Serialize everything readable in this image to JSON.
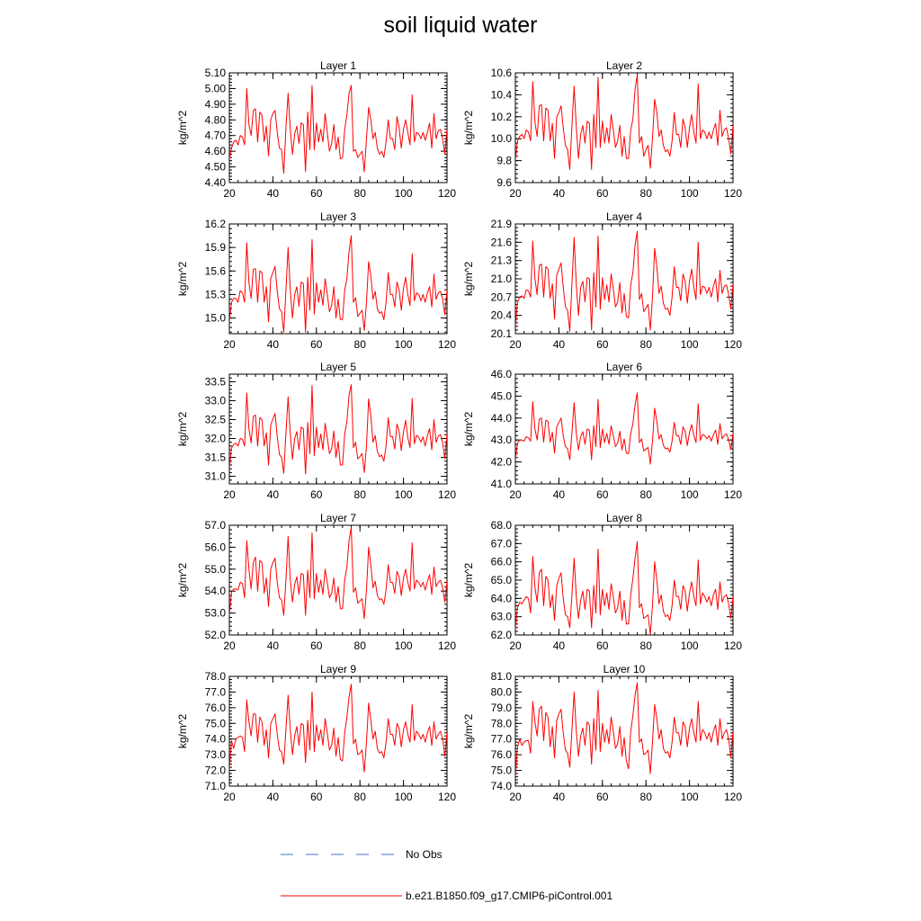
{
  "title": "soil liquid water",
  "colors": {
    "model": "#ff0000",
    "obs": "#4a6fd0",
    "axis": "#000000"
  },
  "legend": [
    {
      "label": "No Obs",
      "style": "dashed",
      "color": "#4a6fd0"
    },
    {
      "label": "b.e21.B1850.f09_g17.CMIP6-piControl.001",
      "style": "solid",
      "color": "#ff0000"
    }
  ],
  "chart_data": [
    {
      "type": "line",
      "title": "Layer 1",
      "ylabel": "kg/m^2",
      "xlim": [
        20,
        120
      ],
      "xticks": [
        20,
        40,
        60,
        80,
        100,
        120
      ],
      "ylim": [
        4.4,
        5.1
      ],
      "yticks": [
        "4.40",
        "4.50",
        "4.60",
        "4.70",
        "4.80",
        "4.90",
        "5.00",
        "5.10"
      ],
      "x_start": 20,
      "values": [
        4.55,
        4.62,
        4.66,
        4.67,
        4.64,
        4.7,
        4.69,
        4.64,
        5.0,
        4.77,
        4.7,
        4.86,
        4.87,
        4.66,
        4.85,
        4.83,
        4.66,
        4.76,
        4.57,
        4.8,
        4.84,
        4.86,
        4.72,
        4.62,
        4.61,
        4.46,
        4.75,
        4.97,
        4.74,
        4.58,
        4.71,
        4.76,
        4.65,
        4.78,
        4.77,
        4.47,
        4.85,
        4.61,
        5.02,
        4.61,
        4.78,
        4.66,
        4.74,
        4.66,
        4.84,
        4.72,
        4.6,
        4.65,
        4.77,
        4.61,
        4.69,
        4.55,
        4.56,
        4.74,
        4.83,
        4.97,
        5.02,
        4.6,
        4.61,
        4.56,
        4.58,
        4.6,
        4.47,
        4.68,
        4.88,
        4.8,
        4.68,
        4.72,
        4.62,
        4.58,
        4.6,
        4.56,
        4.66,
        4.8,
        4.68,
        4.68,
        4.61,
        4.82,
        4.75,
        4.62,
        4.74,
        4.8,
        4.72,
        4.64,
        4.96,
        4.66,
        4.72,
        4.71,
        4.68,
        4.72,
        4.67,
        4.72,
        4.78,
        4.62,
        4.84,
        4.68,
        4.73,
        4.74,
        4.68,
        4.58,
        4.74,
        4.7,
        4.6,
        4.73
      ]
    },
    {
      "type": "line",
      "title": "Layer 2",
      "ylabel": "kg/m^2",
      "xlim": [
        20,
        120
      ],
      "xticks": [
        20,
        40,
        60,
        80,
        100,
        120
      ],
      "ylim": [
        9.6,
        10.6
      ],
      "yticks": [
        "9.6",
        "9.8",
        "10.0",
        "10.2",
        "10.4",
        "10.6"
      ],
      "x_start": 20,
      "values": [
        9.8,
        9.98,
        10.02,
        10.04,
        10.0,
        10.08,
        10.06,
        9.98,
        10.52,
        10.15,
        10.02,
        10.3,
        10.31,
        9.98,
        10.28,
        10.26,
        9.98,
        10.14,
        9.82,
        10.2,
        10.24,
        10.3,
        10.1,
        9.94,
        9.9,
        9.72,
        10.12,
        10.48,
        10.1,
        9.82,
        10.04,
        10.12,
        9.96,
        10.16,
        10.14,
        9.72,
        10.22,
        9.92,
        10.56,
        9.92,
        10.16,
        9.96,
        10.1,
        9.96,
        10.22,
        10.08,
        9.92,
        9.98,
        10.12,
        9.84,
        10.02,
        9.82,
        9.82,
        10.08,
        10.18,
        10.45,
        10.58,
        9.96,
        10.02,
        9.84,
        9.9,
        9.94,
        9.73,
        10.0,
        10.36,
        10.24,
        10.02,
        10.08,
        9.94,
        9.88,
        9.9,
        9.84,
        9.98,
        10.24,
        10.04,
        10.04,
        9.92,
        10.18,
        10.1,
        9.92,
        10.1,
        10.22,
        10.06,
        9.96,
        10.5,
        10.0,
        10.08,
        10.06,
        10.0,
        10.06,
        10.0,
        10.08,
        10.14,
        9.94,
        10.26,
        10.02,
        10.08,
        10.1,
        10.0,
        9.86,
        10.12,
        10.04,
        9.92,
        10.12
      ]
    },
    {
      "type": "line",
      "title": "Layer 3",
      "ylabel": "kg/m^2",
      "xlim": [
        20,
        120
      ],
      "xticks": [
        20,
        40,
        60,
        80,
        100,
        120
      ],
      "ylim": [
        14.8,
        16.2
      ],
      "yticks": [
        "15.0",
        "15.3",
        "15.6",
        "15.9",
        "16.2"
      ],
      "x_start": 20,
      "values": [
        14.95,
        15.2,
        15.25,
        15.25,
        15.2,
        15.35,
        15.32,
        15.2,
        15.96,
        15.45,
        15.25,
        15.62,
        15.63,
        15.2,
        15.6,
        15.58,
        15.2,
        15.4,
        14.95,
        15.5,
        15.58,
        15.66,
        15.34,
        15.12,
        15.08,
        14.82,
        15.36,
        15.9,
        15.35,
        15.0,
        15.3,
        15.4,
        15.15,
        15.46,
        15.44,
        14.82,
        15.52,
        15.1,
        16.0,
        15.05,
        15.45,
        15.2,
        15.36,
        15.16,
        15.5,
        15.3,
        15.08,
        15.16,
        15.4,
        15.0,
        15.24,
        14.98,
        14.98,
        15.36,
        15.5,
        15.85,
        16.05,
        15.2,
        15.26,
        15.02,
        15.06,
        15.1,
        14.84,
        15.2,
        15.72,
        15.54,
        15.24,
        15.34,
        15.12,
        15.06,
        15.08,
        14.98,
        15.2,
        15.58,
        15.3,
        15.3,
        15.14,
        15.46,
        15.36,
        15.1,
        15.38,
        15.52,
        15.3,
        15.16,
        15.82,
        15.22,
        15.32,
        15.3,
        15.22,
        15.3,
        15.2,
        15.32,
        15.4,
        15.14,
        15.56,
        15.24,
        15.32,
        15.34,
        15.24,
        15.04,
        15.36,
        15.28,
        15.12,
        15.36
      ]
    },
    {
      "type": "line",
      "title": "Layer 4",
      "ylabel": "kg/m^2",
      "xlim": [
        20,
        120
      ],
      "xticks": [
        20,
        40,
        60,
        80,
        100,
        120
      ],
      "ylim": [
        20.1,
        21.9
      ],
      "yticks": [
        "20.1",
        "20.4",
        "20.7",
        "21.0",
        "21.3",
        "21.6",
        "21.9"
      ],
      "x_start": 20,
      "values": [
        20.2,
        20.62,
        20.7,
        20.72,
        20.68,
        20.82,
        20.8,
        20.7,
        21.62,
        21.0,
        20.74,
        21.22,
        21.24,
        20.7,
        21.2,
        21.16,
        20.68,
        20.92,
        20.34,
        21.06,
        21.16,
        21.26,
        20.86,
        20.54,
        20.48,
        20.14,
        20.92,
        21.68,
        20.9,
        20.4,
        20.86,
        20.96,
        20.62,
        21.02,
        21.0,
        20.16,
        21.1,
        20.54,
        21.7,
        20.5,
        21.02,
        20.66,
        20.9,
        20.62,
        21.08,
        20.84,
        20.54,
        20.62,
        20.94,
        20.44,
        20.76,
        20.38,
        20.36,
        20.9,
        21.1,
        21.55,
        21.78,
        20.66,
        20.76,
        20.46,
        20.52,
        20.58,
        20.16,
        20.7,
        21.5,
        21.2,
        20.76,
        20.88,
        20.6,
        20.5,
        20.52,
        20.4,
        20.7,
        21.2,
        20.86,
        20.86,
        20.64,
        21.08,
        20.96,
        20.6,
        20.96,
        21.16,
        20.86,
        20.66,
        21.6,
        20.74,
        20.88,
        20.86,
        20.76,
        20.86,
        20.7,
        20.88,
        21.0,
        20.62,
        21.14,
        20.76,
        20.88,
        20.9,
        20.74,
        20.5,
        20.92,
        20.8,
        20.6,
        20.9
      ]
    },
    {
      "type": "line",
      "title": "Layer 5",
      "ylabel": "kg/m^2",
      "xlim": [
        20,
        120
      ],
      "xticks": [
        20,
        40,
        60,
        80,
        100,
        120
      ],
      "ylim": [
        30.8,
        33.7
      ],
      "yticks": [
        "31.0",
        "31.5",
        "32.0",
        "32.5",
        "33.0",
        "33.5"
      ],
      "x_start": 20,
      "values": [
        31.2,
        31.75,
        31.85,
        31.87,
        31.8,
        32.0,
        31.98,
        31.8,
        33.2,
        32.25,
        31.88,
        32.58,
        32.62,
        31.8,
        32.55,
        32.5,
        31.8,
        32.15,
        31.3,
        32.35,
        32.52,
        32.66,
        32.05,
        31.58,
        31.5,
        31.08,
        32.15,
        33.1,
        32.12,
        31.45,
        32.0,
        32.18,
        31.7,
        32.3,
        32.26,
        31.06,
        32.42,
        31.6,
        33.4,
        31.55,
        32.3,
        31.76,
        32.12,
        31.7,
        32.4,
        32.02,
        31.6,
        31.72,
        32.2,
        31.5,
        31.92,
        31.3,
        31.3,
        32.12,
        32.45,
        33.15,
        33.42,
        31.76,
        31.9,
        31.46,
        31.52,
        31.6,
        31.1,
        31.8,
        33.05,
        32.6,
        31.9,
        32.08,
        31.66,
        31.52,
        31.56,
        31.4,
        31.8,
        32.55,
        32.05,
        32.05,
        31.72,
        32.38,
        32.2,
        31.68,
        32.18,
        32.48,
        32.02,
        31.76,
        33.06,
        31.86,
        32.08,
        32.04,
        31.9,
        32.04,
        31.8,
        32.08,
        32.26,
        31.7,
        32.5,
        31.9,
        32.06,
        32.1,
        31.88,
        31.46,
        32.12,
        31.96,
        31.66,
        32.1
      ]
    },
    {
      "type": "line",
      "title": "Layer 6",
      "ylabel": "kg/m^2",
      "xlim": [
        20,
        120
      ],
      "xticks": [
        20,
        40,
        60,
        80,
        100,
        120
      ],
      "ylim": [
        41.0,
        46.0
      ],
      "yticks": [
        "41.0",
        "42.0",
        "43.0",
        "44.0",
        "45.0",
        "46.0"
      ],
      "x_start": 20,
      "values": [
        42.1,
        42.85,
        43.0,
        43.0,
        42.95,
        43.15,
        43.1,
        42.95,
        44.75,
        43.5,
        43.0,
        43.95,
        44.0,
        42.9,
        43.9,
        43.85,
        42.9,
        43.35,
        42.4,
        43.6,
        43.8,
        44.0,
        43.2,
        42.7,
        42.6,
        42.1,
        43.35,
        44.7,
        43.3,
        42.55,
        43.15,
        43.38,
        42.8,
        43.5,
        43.45,
        42.1,
        43.65,
        42.7,
        44.85,
        42.65,
        43.5,
        42.88,
        43.3,
        42.8,
        43.65,
        43.2,
        42.7,
        42.85,
        43.4,
        42.55,
        43.05,
        42.4,
        42.38,
        43.3,
        43.75,
        44.6,
        45.15,
        42.88,
        43.05,
        42.5,
        42.58,
        42.66,
        41.9,
        42.95,
        44.45,
        43.85,
        43.05,
        43.25,
        42.75,
        42.6,
        42.64,
        42.45,
        42.95,
        43.8,
        43.2,
        43.2,
        42.8,
        43.6,
        43.4,
        42.75,
        43.35,
        43.7,
        43.2,
        42.88,
        44.65,
        42.98,
        43.25,
        43.2,
        43.05,
        43.2,
        42.95,
        43.25,
        43.45,
        42.8,
        43.75,
        43.05,
        43.22,
        43.28,
        43.02,
        42.55,
        43.3,
        43.12,
        42.75,
        43.3
      ]
    },
    {
      "type": "line",
      "title": "Layer 7",
      "ylabel": "kg/m^2",
      "xlim": [
        20,
        120
      ],
      "xticks": [
        20,
        40,
        60,
        80,
        100,
        120
      ],
      "ylim": [
        52.0,
        57.0
      ],
      "yticks": [
        "52.0",
        "53.0",
        "54.0",
        "55.0",
        "56.0",
        "57.0"
      ],
      "x_start": 20,
      "values": [
        52.9,
        53.95,
        54.1,
        54.1,
        54.05,
        54.4,
        54.35,
        53.7,
        56.3,
        55.0,
        54.1,
        55.3,
        55.55,
        54.0,
        55.4,
        55.3,
        53.9,
        54.6,
        53.3,
        55.0,
        55.3,
        55.5,
        54.4,
        53.7,
        53.6,
        52.9,
        54.5,
        56.5,
        54.5,
        53.5,
        54.3,
        54.65,
        53.85,
        54.8,
        54.75,
        52.9,
        54.95,
        53.7,
        56.65,
        53.65,
        54.8,
        53.95,
        54.5,
        53.85,
        55.0,
        54.4,
        53.7,
        53.9,
        54.6,
        53.5,
        54.2,
        53.2,
        53.2,
        54.5,
        55.1,
        56.3,
        56.9,
        53.95,
        54.15,
        53.45,
        53.55,
        53.65,
        52.75,
        54.05,
        56.0,
        55.2,
        54.15,
        54.45,
        53.8,
        53.6,
        53.65,
        53.4,
        54.05,
        55.2,
        54.4,
        54.4,
        53.9,
        54.9,
        54.65,
        53.8,
        54.6,
        55.0,
        54.4,
        54.0,
        56.2,
        54.1,
        54.5,
        54.4,
        54.2,
        54.4,
        54.05,
        54.45,
        54.75,
        53.85,
        55.1,
        54.2,
        54.4,
        54.5,
        54.15,
        53.5,
        54.45,
        54.25,
        53.8,
        54.45
      ]
    },
    {
      "type": "line",
      "title": "Layer 8",
      "ylabel": "kg/m^2",
      "xlim": [
        20,
        120
      ],
      "xticks": [
        20,
        40,
        60,
        80,
        100,
        120
      ],
      "ylim": [
        62.0,
        68.0
      ],
      "yticks": [
        "62.0",
        "63.0",
        "64.0",
        "65.0",
        "66.0",
        "67.0",
        "68.0"
      ],
      "x_start": 20,
      "values": [
        62.3,
        63.5,
        63.8,
        63.7,
        63.9,
        64.1,
        64.0,
        63.2,
        66.3,
        64.6,
        63.8,
        65.4,
        65.6,
        63.6,
        65.2,
        65.0,
        63.5,
        64.2,
        62.8,
        64.7,
        65.1,
        65.4,
        64.0,
        63.1,
        63.0,
        62.4,
        64.2,
        66.2,
        64.1,
        62.9,
        63.9,
        64.4,
        63.4,
        64.5,
        64.4,
        62.4,
        64.7,
        63.2,
        66.7,
        63.1,
        64.5,
        63.6,
        64.3,
        63.4,
        64.8,
        64.1,
        63.2,
        63.5,
        64.4,
        62.8,
        63.9,
        62.6,
        62.6,
        64.2,
        65.1,
        66.2,
        67.1,
        63.5,
        63.7,
        62.9,
        63.0,
        63.1,
        62.0,
        63.6,
        66.0,
        65.0,
        63.7,
        64.2,
        63.3,
        63.0,
        63.1,
        62.8,
        63.6,
        65.0,
        64.1,
        64.1,
        63.4,
        64.7,
        64.4,
        63.3,
        64.3,
        64.9,
        64.1,
        63.6,
        66.1,
        63.7,
        64.3,
        64.1,
        63.8,
        64.1,
        63.6,
        64.2,
        64.5,
        63.4,
        64.9,
        63.8,
        64.1,
        64.2,
        63.7,
        62.9,
        64.1,
        63.9,
        63.3,
        64.1
      ]
    },
    {
      "type": "line",
      "title": "Layer 9",
      "ylabel": "kg/m^2",
      "xlim": [
        20,
        120
      ],
      "xticks": [
        20,
        40,
        60,
        80,
        100,
        120
      ],
      "ylim": [
        71.0,
        78.0
      ],
      "yticks": [
        "71.0",
        "72.0",
        "73.0",
        "74.0",
        "75.0",
        "76.0",
        "77.0",
        "78.0"
      ],
      "x_start": 20,
      "values": [
        72.0,
        73.9,
        73.4,
        74.0,
        74.1,
        74.2,
        74.1,
        73.2,
        76.5,
        75.1,
        74.2,
        75.6,
        75.6,
        73.8,
        75.4,
        75.1,
        73.6,
        74.6,
        72.8,
        75.0,
        75.3,
        75.6,
        74.3,
        73.3,
        73.2,
        72.4,
        74.6,
        76.8,
        74.6,
        73.0,
        74.2,
        74.8,
        73.6,
        75.0,
        74.9,
        72.5,
        75.2,
        73.3,
        77.0,
        73.2,
        74.9,
        73.9,
        74.6,
        73.6,
        75.3,
        74.4,
        73.3,
        73.6,
        74.7,
        72.9,
        74.1,
        72.7,
        72.6,
        74.4,
        75.4,
        76.7,
        77.5,
        73.7,
        74.0,
        73.0,
        73.1,
        73.3,
        71.9,
        73.8,
        76.3,
        75.2,
        74.0,
        74.5,
        73.4,
        73.1,
        73.2,
        72.8,
        73.8,
        75.3,
        74.3,
        74.3,
        73.6,
        75.0,
        74.7,
        73.5,
        74.6,
        75.1,
        74.3,
        73.8,
        76.2,
        73.9,
        74.5,
        74.3,
        74.0,
        74.3,
        73.8,
        74.4,
        74.8,
        73.6,
        75.1,
        74.0,
        74.3,
        74.5,
        74.0,
        72.9,
        74.4,
        74.1,
        73.4,
        74.2
      ]
    },
    {
      "type": "line",
      "title": "Layer 10",
      "ylabel": "kg/m^2",
      "xlim": [
        20,
        120
      ],
      "xticks": [
        20,
        40,
        60,
        80,
        100,
        120
      ],
      "ylim": [
        74.0,
        81.0
      ],
      "yticks": [
        "74.0",
        "75.0",
        "76.0",
        "77.0",
        "78.0",
        "79.0",
        "80.0",
        "81.0"
      ],
      "x_start": 20,
      "values": [
        74.6,
        76.5,
        77.0,
        76.6,
        76.8,
        76.9,
        76.9,
        76.1,
        79.4,
        78.1,
        77.2,
        78.9,
        79.1,
        76.9,
        78.7,
        78.4,
        76.5,
        77.8,
        75.8,
        78.2,
        78.6,
        78.9,
        77.4,
        76.3,
        76.1,
        75.2,
        77.6,
        80.0,
        77.5,
        75.9,
        77.2,
        77.7,
        76.6,
        78.1,
        77.9,
        75.4,
        78.3,
        76.3,
        80.1,
        76.2,
        78.0,
        76.8,
        77.6,
        76.7,
        78.4,
        77.5,
        76.4,
        76.7,
        77.8,
        75.9,
        77.1,
        75.6,
        75.1,
        77.5,
        78.5,
        79.8,
        80.6,
        76.8,
        77.0,
        76.0,
        76.1,
        76.3,
        74.8,
        76.8,
        79.2,
        78.3,
        77.0,
        77.6,
        76.4,
        76.1,
        76.2,
        75.8,
        76.8,
        78.4,
        77.4,
        77.4,
        76.6,
        78.1,
        77.8,
        76.5,
        77.7,
        78.3,
        77.4,
        76.8,
        79.4,
        76.9,
        77.6,
        77.4,
        77.0,
        77.4,
        76.8,
        77.5,
        77.9,
        76.6,
        78.3,
        77.0,
        77.4,
        77.6,
        77.0,
        75.8,
        77.5,
        77.2,
        76.4,
        77.2
      ]
    }
  ]
}
